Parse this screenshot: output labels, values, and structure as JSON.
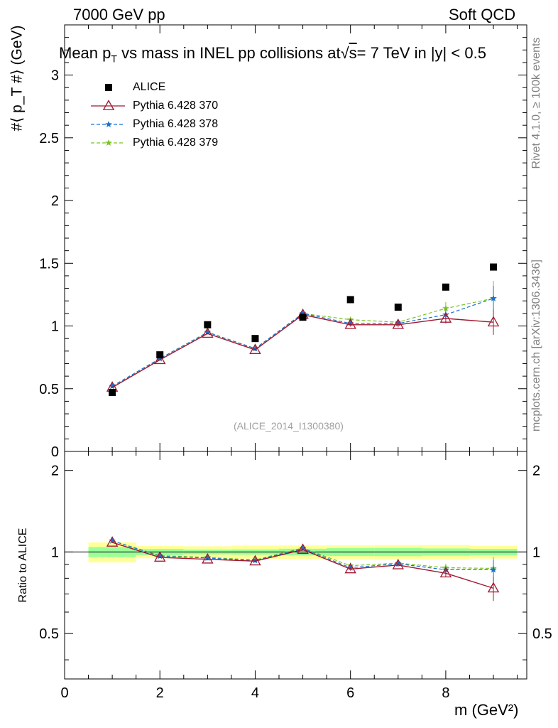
{
  "header": {
    "energy_label": "7000 GeV pp",
    "process_label": "Soft QCD",
    "title": "Mean pₜ vs mass in INEL pp collisions at √s = 7 TeV in |y| < 0.5",
    "title_main": "Mean p",
    "title_sub": "T",
    "title_rest": " vs mass in INEL pp collisions at",
    "title_sqrt": "√",
    "title_s": "s",
    "title_end": "=  7 TeV in |y| < 0.5"
  },
  "side": {
    "rivet_label": "Rivet 4.1.0, ≥ 100k events",
    "mcplots_label": "mcplots.cern.ch [arXiv:1306.3436]"
  },
  "analysis_id": "(ALICE_2014_I1300380)",
  "chart_data": {
    "type": "scatter",
    "main": {
      "ylabel": "#⟨ p_T #⟩ (GeV)",
      "ylim": [
        0,
        3.4
      ],
      "xlim": [
        0,
        9.7
      ],
      "y_ticks": [
        "0",
        "0.5",
        "1",
        "1.5",
        "2",
        "2.5",
        "3"
      ],
      "y_tick_values": [
        0,
        0.5,
        1,
        1.5,
        2,
        2.5,
        3
      ]
    },
    "ratio": {
      "ylabel": "Ratio to ALICE",
      "ylim": [
        0.34,
        2.35
      ],
      "y_ticks": [
        "0.5",
        "1",
        "2"
      ],
      "y_tick_values": [
        0.5,
        1,
        2
      ]
    },
    "xlabel": "m (GeV²)",
    "x_ticks": [
      "0",
      "2",
      "4",
      "6",
      "8"
    ],
    "x_tick_values": [
      0,
      2,
      4,
      6,
      8
    ],
    "x": [
      1,
      2,
      3,
      4,
      5,
      6,
      7,
      8,
      9
    ],
    "data": {
      "name": "ALICE",
      "values": [
        0.47,
        0.77,
        1.01,
        0.9,
        1.07,
        1.21,
        1.15,
        1.31,
        1.47
      ],
      "band_stat_sys": [
        0.04,
        0.04,
        0.05,
        0.05,
        0.06,
        0.07,
        0.07,
        0.08,
        0.08
      ],
      "band_stat": [
        0.02,
        0.02,
        0.02,
        0.02,
        0.03,
        0.04,
        0.04,
        0.04,
        0.04
      ]
    },
    "series": [
      {
        "name": "Pythia 6.428 370",
        "color": "#a01830",
        "values": [
          0.51,
          0.73,
          0.94,
          0.81,
          1.09,
          1.01,
          1.01,
          1.06,
          1.03
        ],
        "errors": [
          0.005,
          0.005,
          0.007,
          0.008,
          0.01,
          0.015,
          0.02,
          0.04,
          0.1
        ],
        "ratio": [
          1.085,
          0.955,
          0.94,
          0.925,
          1.02,
          0.865,
          0.895,
          0.835,
          0.735
        ],
        "ratio_errors": [
          0.005,
          0.005,
          0.008,
          0.01,
          0.01,
          0.012,
          0.015,
          0.025,
          0.075
        ]
      },
      {
        "name": "Pythia 6.428 378",
        "color": "#1a70d0",
        "values": [
          0.52,
          0.74,
          0.95,
          0.82,
          1.1,
          1.02,
          1.02,
          1.09,
          1.22
        ],
        "errors": [
          0.005,
          0.005,
          0.007,
          0.008,
          0.01,
          0.015,
          0.02,
          0.04,
          0.1
        ],
        "ratio": [
          1.1,
          0.965,
          0.95,
          0.93,
          1.03,
          0.875,
          0.905,
          0.86,
          0.86
        ],
        "ratio_errors": [
          0.005,
          0.005,
          0.008,
          0.01,
          0.01,
          0.012,
          0.015,
          0.025,
          0.075
        ]
      },
      {
        "name": "Pythia 6.428 379",
        "color": "#7ac520",
        "values": [
          0.52,
          0.74,
          0.95,
          0.82,
          1.1,
          1.05,
          1.03,
          1.14,
          1.22
        ],
        "errors": [
          0.005,
          0.005,
          0.007,
          0.008,
          0.01,
          0.015,
          0.02,
          0.05,
          0.14
        ],
        "ratio": [
          1.1,
          0.97,
          0.955,
          0.935,
          1.035,
          0.89,
          0.91,
          0.875,
          0.87
        ],
        "ratio_errors": [
          0.005,
          0.005,
          0.008,
          0.01,
          0.01,
          0.012,
          0.015,
          0.03,
          0.09
        ]
      }
    ],
    "legend_position": "top-left"
  }
}
